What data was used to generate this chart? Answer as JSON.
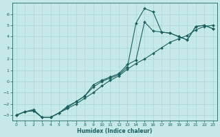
{
  "xlabel": "Humidex (Indice chaleur)",
  "bg_color": "#c5e8e8",
  "line_color": "#1a6060",
  "grid_color": "#b0d8d8",
  "xlim": [
    -0.5,
    23.5
  ],
  "ylim": [
    -3.5,
    7.0
  ],
  "xticks": [
    0,
    1,
    2,
    3,
    4,
    5,
    6,
    7,
    8,
    9,
    10,
    11,
    12,
    13,
    14,
    15,
    16,
    17,
    18,
    19,
    20,
    21,
    22,
    23
  ],
  "yticks": [
    -3,
    -2,
    -1,
    0,
    1,
    2,
    3,
    4,
    5,
    6
  ],
  "line1_x": [
    0,
    1,
    2,
    3,
    4,
    5,
    6,
    7,
    8,
    9,
    10,
    11,
    12,
    13,
    14,
    15,
    16,
    17,
    18,
    19,
    20,
    21,
    22,
    23
  ],
  "line1_y": [
    -3.0,
    -2.7,
    -2.6,
    -3.2,
    -3.2,
    -2.8,
    -2.4,
    -2.0,
    -1.5,
    -1.0,
    -0.4,
    0.1,
    0.5,
    1.1,
    1.6,
    2.0,
    2.5,
    3.0,
    3.5,
    3.8,
    4.1,
    4.6,
    4.9,
    5.0
  ],
  "line2_x": [
    0,
    1,
    2,
    3,
    4,
    5,
    6,
    7,
    8,
    9,
    10,
    11,
    12,
    13,
    14,
    15,
    16,
    17,
    18,
    19,
    20,
    21,
    22,
    23
  ],
  "line2_y": [
    -3.0,
    -2.7,
    -2.6,
    -3.2,
    -3.2,
    -2.8,
    -2.3,
    -1.8,
    -1.3,
    -0.5,
    0.0,
    0.3,
    0.6,
    1.3,
    5.2,
    6.5,
    6.2,
    4.4,
    4.3,
    4.0,
    3.7,
    4.9,
    5.0,
    4.7
  ],
  "line3_x": [
    0,
    1,
    2,
    3,
    4,
    5,
    6,
    7,
    8,
    9,
    10,
    11,
    12,
    13,
    14,
    15,
    16,
    17,
    18,
    19,
    20,
    21,
    22,
    23
  ],
  "line3_y": [
    -3.0,
    -2.7,
    -2.5,
    -3.2,
    -3.2,
    -2.8,
    -2.2,
    -1.8,
    -1.3,
    -0.3,
    0.1,
    0.4,
    0.7,
    1.5,
    1.9,
    5.3,
    4.5,
    4.4,
    4.3,
    4.0,
    3.7,
    4.9,
    5.0,
    4.7
  ]
}
